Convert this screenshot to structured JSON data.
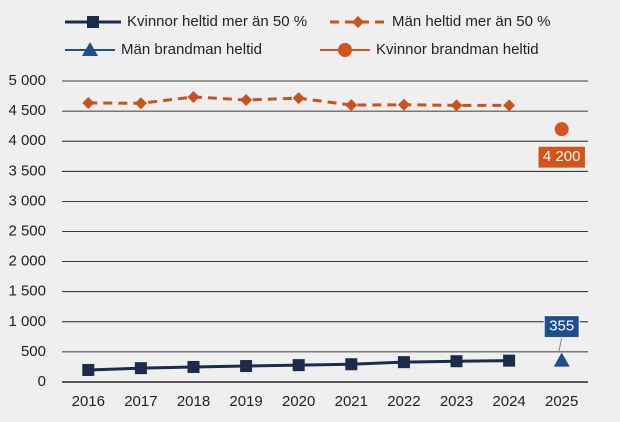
{
  "chart_data": {
    "type": "line",
    "categories": [
      "2016",
      "2017",
      "2018",
      "2019",
      "2020",
      "2021",
      "2022",
      "2023",
      "2024",
      "2025"
    ],
    "series": [
      {
        "name": "Kvinnor heltid mer än 50 %",
        "color": "#1c2b4b",
        "marker": "square",
        "line": "solid",
        "values": [
          200,
          230,
          250,
          265,
          280,
          295,
          330,
          345,
          355,
          null
        ]
      },
      {
        "name": "Män heltid mer än 50 %",
        "color": "#c8531f",
        "marker": "diamond",
        "line": "dashed",
        "values": [
          4635,
          4630,
          4735,
          4685,
          4715,
          4600,
          4605,
          4595,
          4595,
          null
        ]
      },
      {
        "name": "Män brandman heltid",
        "color": "#1f4e8c",
        "marker": "triangle",
        "line": "none",
        "data_labels": true,
        "values": [
          null,
          null,
          null,
          null,
          null,
          null,
          null,
          null,
          null,
          355
        ]
      },
      {
        "name": "Kvinnor brandman heltid",
        "color": "#d4541a",
        "marker": "circle",
        "line": "none",
        "data_labels": true,
        "values": [
          null,
          null,
          null,
          null,
          null,
          null,
          null,
          null,
          null,
          4200
        ],
        "value_labels": [
          null,
          null,
          null,
          null,
          null,
          null,
          null,
          null,
          null,
          "4 200"
        ]
      }
    ],
    "ylim": [
      0,
      5000
    ],
    "yticks": [
      0,
      500,
      {
        "value": 1000,
        "label": "1 000"
      },
      {
        "value": 1500,
        "label": "1 500"
      },
      {
        "value": 2000,
        "label": "2 000"
      },
      {
        "value": 2500,
        "label": "2 500"
      },
      {
        "value": 3000,
        "label": "3 000"
      },
      {
        "value": 3500,
        "label": "3 500"
      },
      {
        "value": 4000,
        "label": "4 000"
      },
      {
        "value": 4500,
        "label": "4 500"
      },
      {
        "value": 5000,
        "label": "5 000"
      }
    ],
    "grid": true,
    "legend": "top"
  }
}
